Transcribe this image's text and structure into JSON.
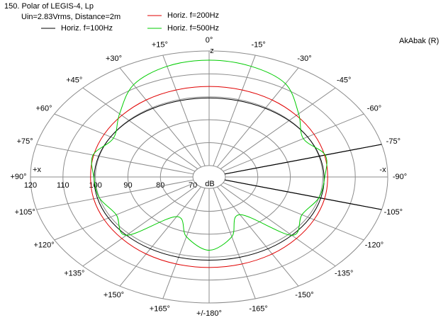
{
  "chart_data": {
    "type": "polar",
    "title": "150. Polar of LEGIS-4, Lp",
    "subtitle": "Uin=2.83Vrms, Distance=2m",
    "watermark": "AkAbak (R)",
    "axis_labels": {
      "plus_x": "+x",
      "minus_x": "-x",
      "z": "z"
    },
    "r_unit": "dB",
    "rlim": [
      65,
      120
    ],
    "rticks": [
      70,
      80,
      90,
      100,
      110,
      120
    ],
    "angle_ticks": [
      {
        "value": 0,
        "label": "0°"
      },
      {
        "value": 15,
        "label": "+15°"
      },
      {
        "value": 30,
        "label": "+30°"
      },
      {
        "value": 45,
        "label": "+45°"
      },
      {
        "value": 60,
        "label": "+60°"
      },
      {
        "value": 75,
        "label": "+75°"
      },
      {
        "value": 90,
        "label": "+90°"
      },
      {
        "value": 105,
        "label": "+105°"
      },
      {
        "value": 120,
        "label": "+120°"
      },
      {
        "value": 135,
        "label": "+135°"
      },
      {
        "value": 150,
        "label": "+150°"
      },
      {
        "value": 165,
        "label": "+165°"
      },
      {
        "value": 180,
        "label": "+/-180°"
      },
      {
        "value": -165,
        "label": "-165°"
      },
      {
        "value": -150,
        "label": "-150°"
      },
      {
        "value": -135,
        "label": "-135°"
      },
      {
        "value": -120,
        "label": "-120°"
      },
      {
        "value": -105,
        "label": "-105°"
      },
      {
        "value": -90,
        "label": "-90°"
      },
      {
        "value": -75,
        "label": "-75°"
      },
      {
        "value": -60,
        "label": "-60°"
      },
      {
        "value": -45,
        "label": "-45°"
      },
      {
        "value": -30,
        "label": "-30°"
      },
      {
        "value": -15,
        "label": "-15°"
      }
    ],
    "marker_angles": [
      -75,
      -105
    ],
    "theta": [
      0,
      15,
      30,
      45,
      60,
      75,
      90,
      105,
      120,
      135,
      150,
      165,
      180,
      195,
      210,
      225,
      240,
      255,
      270,
      285,
      300,
      315,
      330,
      345
    ],
    "series": [
      {
        "name": "Horiz. f=100Hz",
        "color": "#000000",
        "values": [
          99.5,
          99.5,
          99.6,
          99.8,
          100,
          100.2,
          100.4,
          100.6,
          100.8,
          101,
          101.2,
          101.3,
          101.3,
          101.3,
          101.2,
          101,
          100.8,
          100.6,
          100.4,
          100.2,
          100,
          99.8,
          99.6,
          99.5
        ]
      },
      {
        "name": "Horiz. f=200Hz",
        "color": "#e00000",
        "values": [
          104.5,
          104.3,
          103.8,
          103,
          102.3,
          101.8,
          101.5,
          101.8,
          102.3,
          103,
          103.8,
          104.3,
          104.5,
          104.3,
          103.8,
          103,
          102.3,
          101.8,
          101.5,
          101.8,
          102.3,
          103,
          103.8,
          104.3
        ]
      },
      {
        "name": "Horiz. f=500Hz",
        "color": "#00cc00",
        "values": [
          116,
          115,
          111.5,
          104,
          99,
          102,
          100.5,
          100,
          98,
          101,
          85,
          92,
          97,
          92,
          84,
          101,
          98,
          100,
          100.6,
          102,
          98.5,
          104,
          112,
          115
        ]
      }
    ]
  }
}
